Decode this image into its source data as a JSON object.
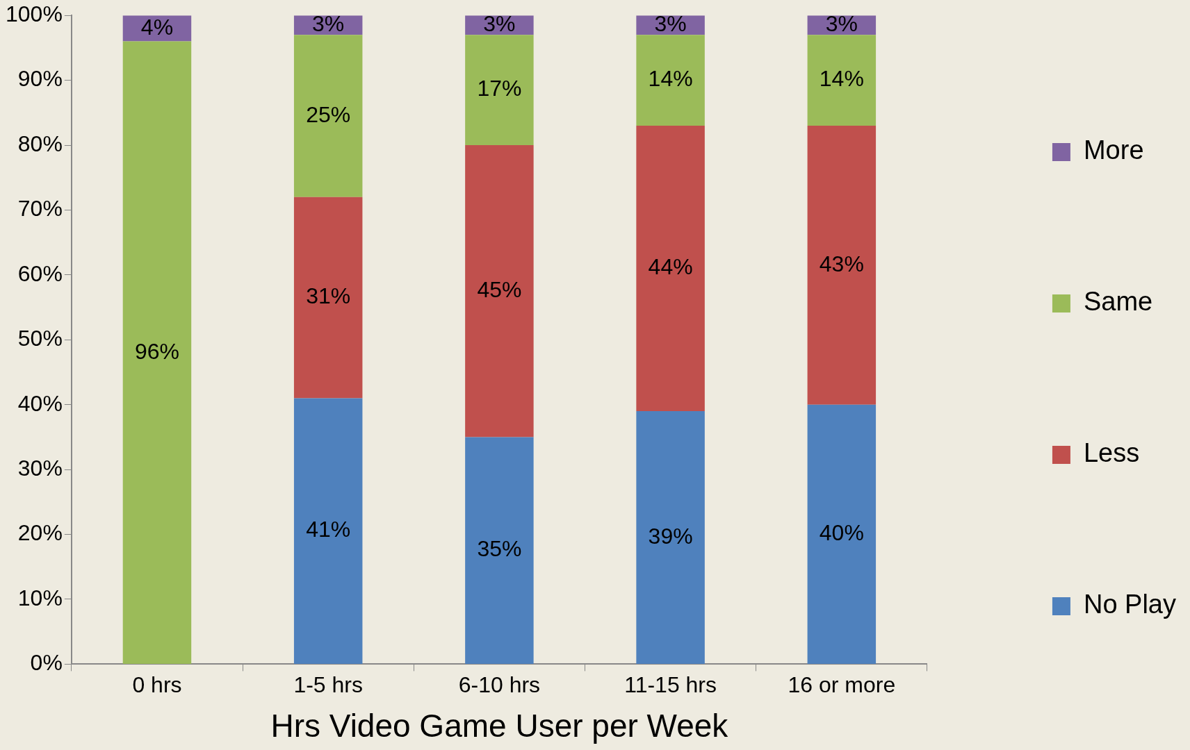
{
  "chart_data": {
    "type": "bar",
    "stacked": true,
    "xlabel": "Hrs Video Game User per Week",
    "categories": [
      "0 hrs",
      "1-5 hrs",
      "6-10 hrs",
      "11-15 hrs",
      "16 or more"
    ],
    "series": [
      {
        "name": "No Play",
        "color": "#4f81bd",
        "values": [
          null,
          41,
          35,
          39,
          40
        ],
        "value_labels": [
          null,
          "41%",
          "35%",
          "39%",
          "40%"
        ]
      },
      {
        "name": "Less",
        "color": "#c0504d",
        "values": [
          null,
          31,
          45,
          44,
          43
        ],
        "value_labels": [
          null,
          "31%",
          "45%",
          "44%",
          "43%"
        ]
      },
      {
        "name": "Same",
        "color": "#9bbb59",
        "values": [
          96,
          25,
          17,
          14,
          14
        ],
        "value_labels": [
          "96%",
          "25%",
          "17%",
          "14%",
          "14%"
        ]
      },
      {
        "name": "More",
        "color": "#8064a2",
        "values": [
          4,
          3,
          3,
          3,
          3
        ],
        "value_labels": [
          "4%",
          "3%",
          "3%",
          "3%",
          "3%"
        ]
      }
    ],
    "ylim": [
      0,
      100
    ],
    "yticks": [
      {
        "value": 0,
        "label": "0%"
      },
      {
        "value": 10,
        "label": "10%"
      },
      {
        "value": 20,
        "label": "20%"
      },
      {
        "value": 30,
        "label": "30%"
      },
      {
        "value": 40,
        "label": "40%"
      },
      {
        "value": 50,
        "label": "50%"
      },
      {
        "value": 60,
        "label": "60%"
      },
      {
        "value": 70,
        "label": "70%"
      },
      {
        "value": 80,
        "label": "80%"
      },
      {
        "value": 90,
        "label": "90%"
      },
      {
        "value": 100,
        "label": "100%"
      }
    ],
    "grid": false,
    "legend": "right"
  }
}
